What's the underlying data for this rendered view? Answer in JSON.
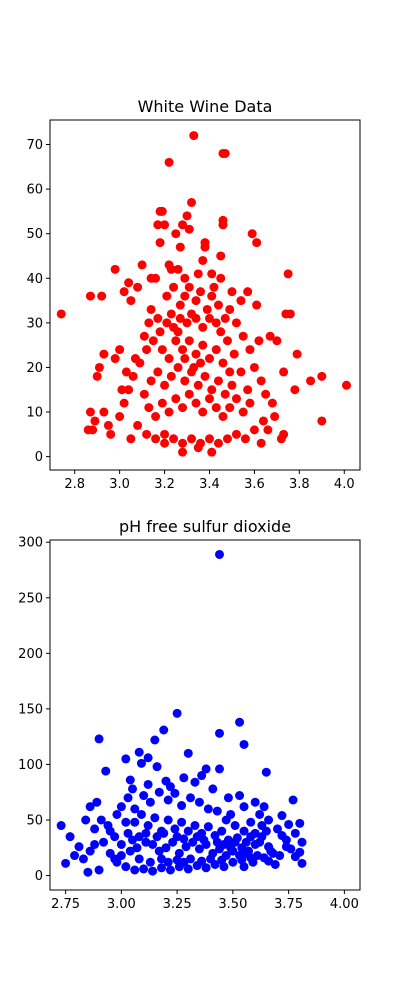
{
  "chart_data": [
    {
      "type": "scatter",
      "title": "White Wine Data",
      "xlabel": "",
      "ylabel": "",
      "xlim": [
        2.69,
        4.07
      ],
      "ylim": [
        -3,
        75.5
      ],
      "xticks": [
        "2.8",
        "3.0",
        "3.2",
        "3.4",
        "3.6",
        "3.8",
        "4.0"
      ],
      "yticks": [
        "0",
        "10",
        "20",
        "30",
        "40",
        "50",
        "60",
        "70"
      ],
      "color": "#ff0000",
      "points": [
        [
          2.74,
          32
        ],
        [
          3.33,
          72
        ],
        [
          3.22,
          66
        ],
        [
          3.47,
          68
        ],
        [
          3.46,
          68
        ],
        [
          3.32,
          57
        ],
        [
          3.18,
          55
        ],
        [
          3.19,
          55
        ],
        [
          3.46,
          53
        ],
        [
          3.46,
          52
        ],
        [
          3.3,
          54
        ],
        [
          3.31,
          51
        ],
        [
          3.25,
          50
        ],
        [
          3.28,
          52
        ],
        [
          3.59,
          50
        ],
        [
          3.61,
          48
        ],
        [
          3.17,
          52
        ],
        [
          3.2,
          52
        ],
        [
          3.18,
          48
        ],
        [
          3.38,
          48
        ],
        [
          3.38,
          47
        ],
        [
          3.45,
          45
        ],
        [
          3.27,
          47
        ],
        [
          3.22,
          43
        ],
        [
          3.23,
          42
        ],
        [
          3.37,
          44
        ],
        [
          3.14,
          40
        ],
        [
          3.16,
          40
        ],
        [
          3.1,
          43
        ],
        [
          2.98,
          42
        ],
        [
          3.75,
          41
        ],
        [
          3.04,
          39
        ],
        [
          3.08,
          38
        ],
        [
          3.02,
          37
        ],
        [
          3.45,
          40
        ],
        [
          3.5,
          37
        ],
        [
          3.54,
          35
        ],
        [
          3.57,
          37
        ],
        [
          3.61,
          34
        ],
        [
          3.74,
          32
        ],
        [
          2.87,
          36
        ],
        [
          2.92,
          36
        ],
        [
          3.05,
          35
        ],
        [
          2.93,
          23
        ],
        [
          2.91,
          20
        ],
        [
          2.9,
          18
        ],
        [
          2.87,
          10
        ],
        [
          2.89,
          8
        ],
        [
          2.86,
          6
        ],
        [
          2.88,
          6
        ],
        [
          2.93,
          10
        ],
        [
          2.95,
          7
        ],
        [
          2.98,
          22
        ],
        [
          3.0,
          24
        ],
        [
          3.01,
          15
        ],
        [
          3.62,
          26
        ],
        [
          3.67,
          27
        ],
        [
          3.7,
          26
        ],
        [
          3.73,
          19
        ],
        [
          3.76,
          32
        ],
        [
          3.79,
          23
        ],
        [
          3.78,
          15
        ],
        [
          3.85,
          17
        ],
        [
          3.9,
          18
        ],
        [
          3.9,
          8
        ],
        [
          4.01,
          16
        ],
        [
          3.72,
          4
        ],
        [
          3.73,
          5
        ],
        [
          3.69,
          9
        ],
        [
          3.66,
          6
        ],
        [
          3.63,
          3
        ],
        [
          3.28,
          1
        ],
        [
          3.41,
          1
        ],
        [
          3.35,
          2
        ],
        [
          3.2,
          3
        ],
        [
          3.05,
          4
        ],
        [
          2.96,
          5
        ],
        [
          3.11,
          27
        ],
        [
          3.07,
          22
        ],
        [
          3.03,
          19
        ],
        [
          3.13,
          30
        ],
        [
          3.14,
          33
        ],
        [
          3.17,
          31
        ],
        [
          3.21,
          36
        ],
        [
          3.24,
          38
        ],
        [
          3.27,
          34
        ],
        [
          3.29,
          36
        ],
        [
          3.31,
          38
        ],
        [
          3.34,
          35
        ],
        [
          3.36,
          37
        ],
        [
          3.39,
          33
        ],
        [
          3.41,
          36
        ],
        [
          3.42,
          38
        ],
        [
          3.44,
          34
        ],
        [
          3.47,
          31
        ],
        [
          3.49,
          33
        ],
        [
          3.52,
          30
        ],
        [
          3.55,
          27
        ],
        [
          3.58,
          24
        ],
        [
          3.6,
          20
        ],
        [
          3.63,
          17
        ],
        [
          3.65,
          14
        ],
        [
          3.68,
          12
        ],
        [
          3.57,
          15
        ],
        [
          3.54,
          19
        ],
        [
          3.51,
          23
        ],
        [
          3.48,
          26
        ],
        [
          3.45,
          28
        ],
        [
          3.43,
          30
        ],
        [
          3.4,
          31
        ],
        [
          3.37,
          29
        ],
        [
          3.34,
          31
        ],
        [
          3.32,
          32
        ],
        [
          3.3,
          30
        ],
        [
          3.27,
          31
        ],
        [
          3.24,
          29
        ],
        [
          3.21,
          30
        ],
        [
          3.18,
          28
        ],
        [
          3.15,
          26
        ],
        [
          3.12,
          24
        ],
        [
          3.09,
          21
        ],
        [
          3.06,
          18
        ],
        [
          3.04,
          15
        ],
        [
          3.02,
          12
        ],
        [
          3.0,
          9
        ],
        [
          3.08,
          7
        ],
        [
          3.12,
          5
        ],
        [
          3.16,
          4
        ],
        [
          3.2,
          5
        ],
        [
          3.24,
          4
        ],
        [
          3.28,
          3
        ],
        [
          3.32,
          4
        ],
        [
          3.36,
          3
        ],
        [
          3.4,
          4
        ],
        [
          3.44,
          3
        ],
        [
          3.48,
          4
        ],
        [
          3.52,
          5
        ],
        [
          3.56,
          4
        ],
        [
          3.6,
          6
        ],
        [
          3.64,
          8
        ],
        [
          3.19,
          24
        ],
        [
          3.22,
          22
        ],
        [
          3.25,
          26
        ],
        [
          3.28,
          24
        ],
        [
          3.31,
          26
        ],
        [
          3.34,
          23
        ],
        [
          3.37,
          25
        ],
        [
          3.4,
          22
        ],
        [
          3.43,
          24
        ],
        [
          3.46,
          21
        ],
        [
          3.49,
          19
        ],
        [
          3.5,
          16
        ],
        [
          3.47,
          14
        ],
        [
          3.44,
          17
        ],
        [
          3.41,
          15
        ],
        [
          3.38,
          18
        ],
        [
          3.35,
          16
        ],
        [
          3.32,
          19
        ],
        [
          3.29,
          17
        ],
        [
          3.26,
          20
        ],
        [
          3.23,
          18
        ],
        [
          3.2,
          16
        ],
        [
          3.17,
          19
        ],
        [
          3.14,
          17
        ],
        [
          3.11,
          14
        ],
        [
          3.13,
          11
        ],
        [
          3.16,
          9
        ],
        [
          3.19,
          12
        ],
        [
          3.22,
          10
        ],
        [
          3.25,
          13
        ],
        [
          3.28,
          11
        ],
        [
          3.31,
          14
        ],
        [
          3.34,
          12
        ],
        [
          3.37,
          10
        ],
        [
          3.4,
          13
        ],
        [
          3.43,
          11
        ],
        [
          3.46,
          9
        ],
        [
          3.49,
          11
        ],
        [
          3.52,
          13
        ],
        [
          3.55,
          10
        ],
        [
          3.58,
          12
        ],
        [
          3.26,
          42
        ],
        [
          3.29,
          40
        ],
        [
          3.35,
          41
        ],
        [
          3.41,
          41
        ],
        [
          3.23,
          32
        ],
        [
          3.26,
          28
        ],
        [
          3.29,
          22
        ],
        [
          3.33,
          20
        ],
        [
          3.36,
          21
        ]
      ]
    },
    {
      "type": "scatter",
      "title": "pH free sulfur dioxide",
      "xlabel": "",
      "ylabel": "",
      "xlim": [
        2.68,
        4.07
      ],
      "ylim": [
        -13,
        302
      ],
      "xticks": [
        "2.75",
        "3.00",
        "3.25",
        "3.50",
        "3.75",
        "4.00"
      ],
      "yticks": [
        "0",
        "50",
        "100",
        "150",
        "200",
        "250",
        "300"
      ],
      "color": "#0000ff",
      "points": [
        [
          3.44,
          289
        ],
        [
          3.25,
          146
        ],
        [
          3.53,
          138
        ],
        [
          3.44,
          128
        ],
        [
          3.19,
          131
        ],
        [
          2.9,
          123
        ],
        [
          3.15,
          122
        ],
        [
          3.55,
          118
        ],
        [
          3.08,
          111
        ],
        [
          3.3,
          110
        ],
        [
          3.02,
          105
        ],
        [
          3.12,
          106
        ],
        [
          3.09,
          101
        ],
        [
          3.16,
          98
        ],
        [
          3.38,
          96
        ],
        [
          3.44,
          96
        ],
        [
          2.93,
          94
        ],
        [
          3.65,
          93
        ],
        [
          3.28,
          88
        ],
        [
          3.36,
          90
        ],
        [
          3.04,
          86
        ],
        [
          3.2,
          85
        ],
        [
          3.33,
          84
        ],
        [
          3.12,
          82
        ],
        [
          3.22,
          80
        ],
        [
          3.41,
          78
        ],
        [
          3.05,
          78
        ],
        [
          3.53,
          72
        ],
        [
          3.48,
          70
        ],
        [
          3.6,
          66
        ],
        [
          3.77,
          68
        ],
        [
          3.55,
          62
        ],
        [
          3.64,
          62
        ],
        [
          3.72,
          54
        ],
        [
          2.73,
          45
        ],
        [
          2.77,
          35
        ],
        [
          2.75,
          11
        ],
        [
          2.79,
          18
        ],
        [
          2.81,
          26
        ],
        [
          2.84,
          50
        ],
        [
          2.86,
          62
        ],
        [
          2.89,
          66
        ],
        [
          2.85,
          3
        ],
        [
          2.9,
          5
        ],
        [
          3.8,
          47
        ],
        [
          3.78,
          38
        ],
        [
          3.81,
          30
        ],
        [
          3.8,
          21
        ],
        [
          3.81,
          11
        ],
        [
          3.75,
          46
        ],
        [
          3.74,
          32
        ],
        [
          3.76,
          24
        ],
        [
          3.78,
          17
        ],
        [
          3.69,
          10
        ],
        [
          3.66,
          13
        ],
        [
          3.61,
          18
        ],
        [
          3.65,
          40
        ],
        [
          3.62,
          55
        ],
        [
          3.58,
          48
        ],
        [
          3.49,
          55
        ],
        [
          2.95,
          40
        ],
        [
          2.98,
          55
        ],
        [
          3.0,
          62
        ],
        [
          3.03,
          70
        ],
        [
          3.06,
          60
        ],
        [
          3.1,
          72
        ],
        [
          3.13,
          66
        ],
        [
          3.17,
          75
        ],
        [
          3.21,
          68
        ],
        [
          3.24,
          74
        ],
        [
          3.27,
          63
        ],
        [
          3.31,
          70
        ],
        [
          3.35,
          66
        ],
        [
          3.39,
          60
        ],
        [
          3.43,
          58
        ],
        [
          3.47,
          50
        ],
        [
          3.51,
          45
        ],
        [
          3.55,
          40
        ],
        [
          3.58,
          35
        ],
        [
          3.62,
          30
        ],
        [
          3.66,
          26
        ],
        [
          3.68,
          20
        ],
        [
          2.92,
          30
        ],
        [
          2.95,
          20
        ],
        [
          2.98,
          12
        ],
        [
          3.02,
          8
        ],
        [
          3.06,
          5
        ],
        [
          3.1,
          6
        ],
        [
          3.14,
          4
        ],
        [
          3.18,
          7
        ],
        [
          3.22,
          5
        ],
        [
          3.26,
          8
        ],
        [
          3.3,
          6
        ],
        [
          3.34,
          9
        ],
        [
          3.38,
          7
        ],
        [
          3.42,
          10
        ],
        [
          3.46,
          8
        ],
        [
          3.5,
          12
        ],
        [
          3.54,
          14
        ],
        [
          3.58,
          16
        ],
        [
          2.88,
          42
        ],
        [
          2.91,
          50
        ],
        [
          2.94,
          45
        ],
        [
          2.97,
          35
        ],
        [
          3.0,
          28
        ],
        [
          3.03,
          38
        ],
        [
          3.06,
          48
        ],
        [
          3.09,
          55
        ],
        [
          3.12,
          45
        ],
        [
          3.15,
          52
        ],
        [
          3.18,
          40
        ],
        [
          3.21,
          50
        ],
        [
          3.24,
          42
        ],
        [
          3.27,
          48
        ],
        [
          3.3,
          40
        ],
        [
          3.33,
          45
        ],
        [
          3.36,
          38
        ],
        [
          3.39,
          44
        ],
        [
          3.42,
          36
        ],
        [
          3.45,
          40
        ],
        [
          3.48,
          32
        ],
        [
          3.51,
          30
        ],
        [
          3.54,
          25
        ],
        [
          3.57,
          22
        ],
        [
          3.6,
          28
        ],
        [
          3.63,
          35
        ],
        [
          2.97,
          15
        ],
        [
          3.0,
          18
        ],
        [
          3.04,
          22
        ],
        [
          3.07,
          25
        ],
        [
          3.11,
          30
        ],
        [
          3.14,
          28
        ],
        [
          3.17,
          22
        ],
        [
          3.2,
          25
        ],
        [
          3.23,
          30
        ],
        [
          3.26,
          20
        ],
        [
          3.29,
          26
        ],
        [
          3.32,
          30
        ],
        [
          3.35,
          24
        ],
        [
          3.38,
          28
        ],
        [
          3.41,
          20
        ],
        [
          3.44,
          24
        ],
        [
          3.47,
          18
        ],
        [
          3.5,
          22
        ],
        [
          3.53,
          18
        ],
        [
          3.56,
          20
        ],
        [
          3.08,
          35
        ],
        [
          3.11,
          38
        ],
        [
          3.16,
          35
        ],
        [
          3.19,
          38
        ],
        [
          3.25,
          35
        ],
        [
          3.28,
          33
        ],
        [
          3.34,
          35
        ],
        [
          3.37,
          32
        ],
        [
          3.43,
          30
        ],
        [
          3.46,
          28
        ],
        [
          3.49,
          25
        ],
        [
          2.83,
          15
        ],
        [
          2.86,
          22
        ],
        [
          2.88,
          28
        ],
        [
          3.02,
          48
        ],
        [
          3.05,
          32
        ],
        [
          3.08,
          15
        ],
        [
          3.13,
          12
        ],
        [
          3.18,
          15
        ],
        [
          3.21,
          12
        ],
        [
          3.25,
          14
        ],
        [
          3.28,
          12
        ],
        [
          3.31,
          15
        ],
        [
          3.36,
          13
        ],
        [
          3.4,
          15
        ],
        [
          3.45,
          14
        ],
        [
          3.52,
          34
        ],
        [
          3.56,
          30
        ],
        [
          3.6,
          38
        ],
        [
          3.63,
          45
        ],
        [
          3.66,
          50
        ],
        [
          3.7,
          42
        ],
        [
          3.72,
          36
        ],
        [
          3.74,
          26
        ],
        [
          3.71,
          18
        ],
        [
          3.67,
          22
        ],
        [
          3.64,
          16
        ],
        [
          3.59,
          12
        ],
        [
          3.55,
          8
        ]
      ]
    }
  ]
}
